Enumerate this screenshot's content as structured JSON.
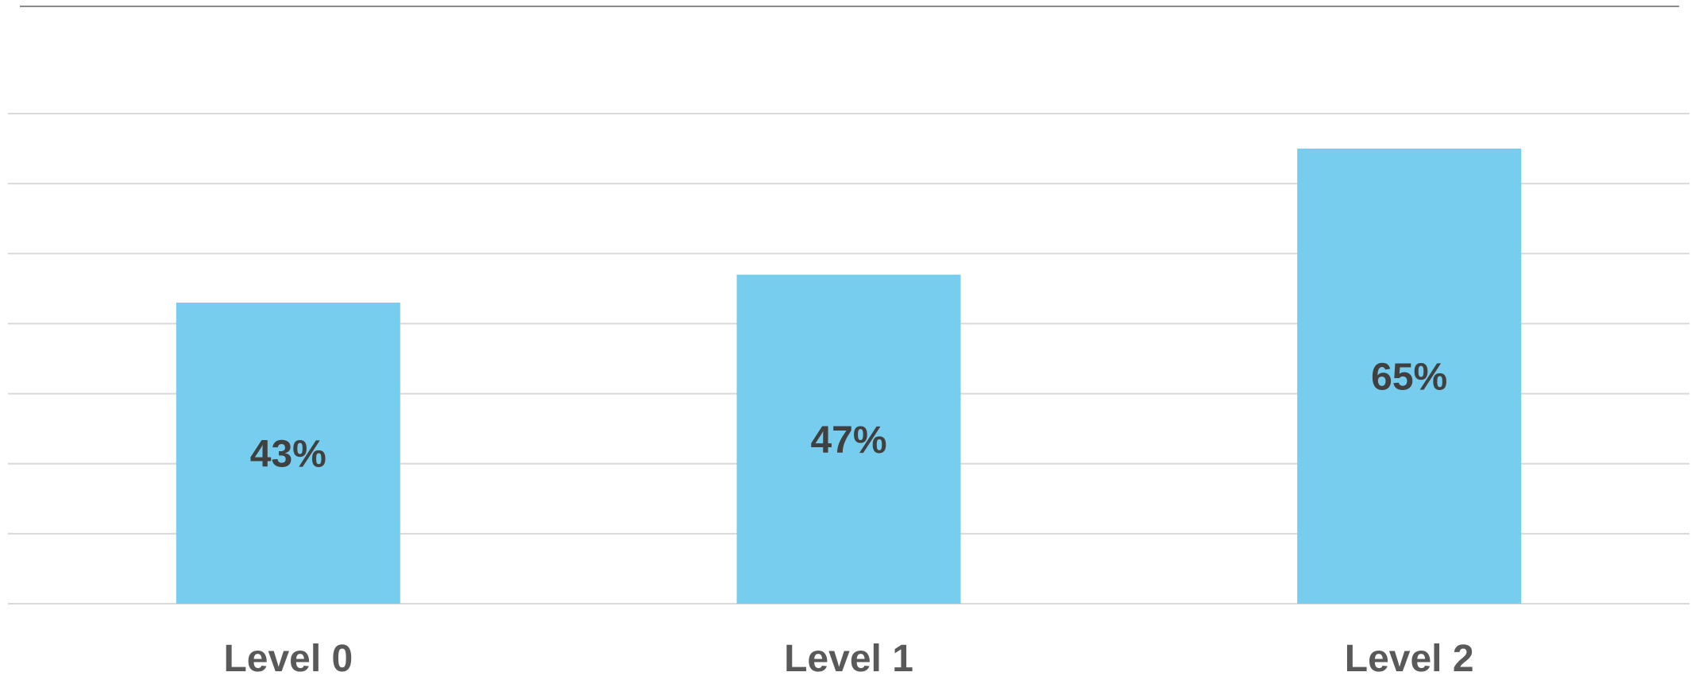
{
  "chart_data": {
    "type": "bar",
    "categories": [
      "Level 0",
      "Level 1",
      "Level 2"
    ],
    "values": [
      43,
      47,
      65
    ],
    "data_labels": [
      "43%",
      "47%",
      "65%"
    ],
    "ylim": [
      0,
      70
    ],
    "grid": true,
    "legend": "none",
    "colors": {
      "bar": "#76CDEE",
      "data_label": "#404040",
      "category_label": "#595959",
      "gridline": "#D9D9D9",
      "top_border": "#8C8C8C"
    }
  }
}
